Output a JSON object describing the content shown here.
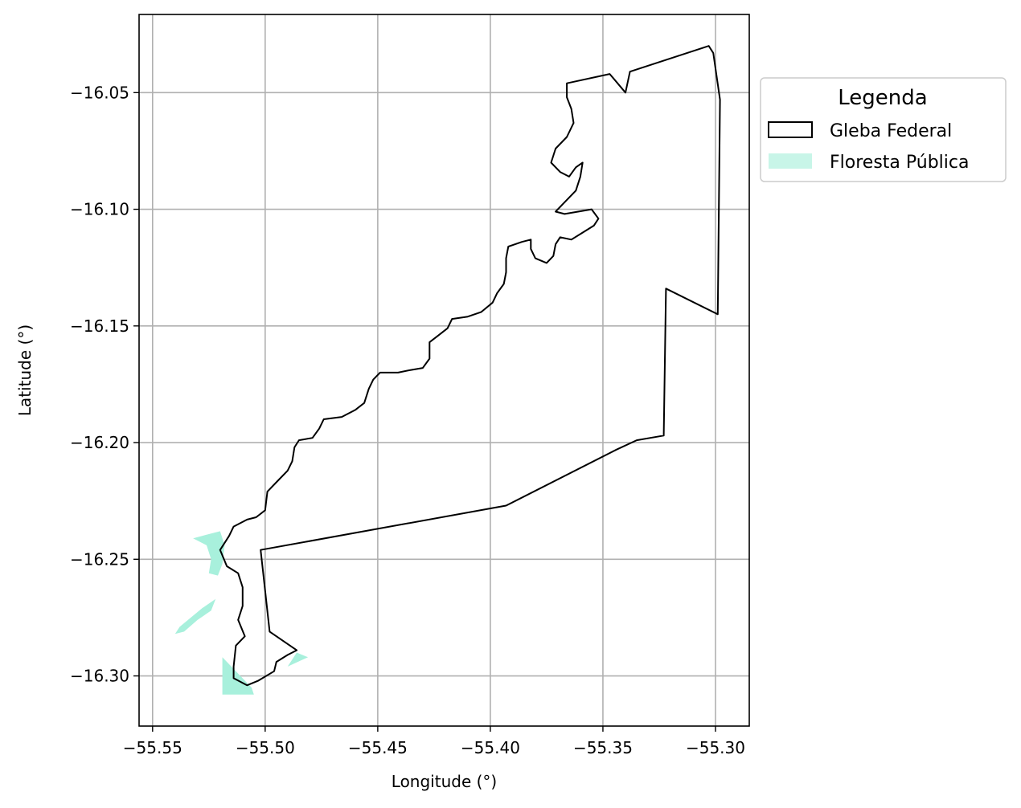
{
  "axes": {
    "xlabel": "Longitude (°)",
    "ylabel": "Latitude (°)",
    "xlim": [
      -55.556,
      -55.285
    ],
    "ylim": [
      -16.3215,
      -16.0165
    ],
    "xticks": [
      -55.55,
      -55.5,
      -55.45,
      -55.4,
      -55.35,
      -55.3
    ],
    "xtick_labels": [
      "−55.55",
      "−55.50",
      "−55.45",
      "−55.40",
      "−55.35",
      "−55.30"
    ],
    "yticks": [
      -16.05,
      -16.1,
      -16.15,
      -16.2,
      -16.25,
      -16.3
    ],
    "ytick_labels": [
      "−16.05",
      "−16.10",
      "−16.15",
      "−16.20",
      "−16.25",
      "−16.30"
    ],
    "grid": true
  },
  "legend": {
    "title": "Legenda",
    "placement": "outside-right-top",
    "items": [
      {
        "label": "Gleba Federal",
        "style": "outline",
        "edge_color": "#000000",
        "fill_color": "#ffffff"
      },
      {
        "label": "Floresta Pública",
        "style": "fill",
        "edge_color": "#c8f5e8",
        "fill_color": "#c8f5e8"
      }
    ]
  },
  "colors": {
    "gleba_edge": "#000000",
    "floresta_fill": "#a8f0dc",
    "grid": "#b0b0b0"
  },
  "map_data": {
    "gleba_federal": [
      [
        -55.366,
        -16.046
      ],
      [
        -55.347,
        -16.042
      ],
      [
        -55.34,
        -16.05
      ],
      [
        -55.338,
        -16.041
      ],
      [
        -55.303,
        -16.03
      ],
      [
        -55.301,
        -16.033
      ],
      [
        -55.298,
        -16.053
      ],
      [
        -55.299,
        -16.145
      ],
      [
        -55.322,
        -16.134
      ],
      [
        -55.323,
        -16.197
      ],
      [
        -55.335,
        -16.199
      ],
      [
        -55.344,
        -16.203
      ],
      [
        -55.393,
        -16.227
      ],
      [
        -55.502,
        -16.246
      ],
      [
        -55.498,
        -16.281
      ],
      [
        -55.486,
        -16.289
      ],
      [
        -55.49,
        -16.291
      ],
      [
        -55.495,
        -16.294
      ],
      [
        -55.496,
        -16.298
      ],
      [
        -55.503,
        -16.302
      ],
      [
        -55.508,
        -16.304
      ],
      [
        -55.514,
        -16.301
      ],
      [
        -55.514,
        -16.296
      ],
      [
        -55.513,
        -16.287
      ],
      [
        -55.509,
        -16.283
      ],
      [
        -55.512,
        -16.276
      ],
      [
        -55.51,
        -16.27
      ],
      [
        -55.51,
        -16.262
      ],
      [
        -55.512,
        -16.256
      ],
      [
        -55.517,
        -16.253
      ],
      [
        -55.52,
        -16.246
      ],
      [
        -55.516,
        -16.24
      ],
      [
        -55.514,
        -16.236
      ],
      [
        -55.508,
        -16.233
      ],
      [
        -55.504,
        -16.232
      ],
      [
        -55.5,
        -16.229
      ],
      [
        -55.499,
        -16.221
      ],
      [
        -55.494,
        -16.216
      ],
      [
        -55.49,
        -16.212
      ],
      [
        -55.488,
        -16.208
      ],
      [
        -55.487,
        -16.202
      ],
      [
        -55.485,
        -16.199
      ],
      [
        -55.479,
        -16.198
      ],
      [
        -55.476,
        -16.194
      ],
      [
        -55.474,
        -16.19
      ],
      [
        -55.466,
        -16.189
      ],
      [
        -55.46,
        -16.186
      ],
      [
        -55.456,
        -16.183
      ],
      [
        -55.454,
        -16.177
      ],
      [
        -55.452,
        -16.173
      ],
      [
        -55.449,
        -16.17
      ],
      [
        -55.441,
        -16.17
      ],
      [
        -55.436,
        -16.169
      ],
      [
        -55.43,
        -16.168
      ],
      [
        -55.427,
        -16.164
      ],
      [
        -55.427,
        -16.157
      ],
      [
        -55.423,
        -16.154
      ],
      [
        -55.419,
        -16.151
      ],
      [
        -55.417,
        -16.147
      ],
      [
        -55.41,
        -16.146
      ],
      [
        -55.404,
        -16.144
      ],
      [
        -55.399,
        -16.14
      ],
      [
        -55.397,
        -16.136
      ],
      [
        -55.394,
        -16.132
      ],
      [
        -55.393,
        -16.127
      ],
      [
        -55.393,
        -16.121
      ],
      [
        -55.392,
        -16.116
      ],
      [
        -55.386,
        -16.114
      ],
      [
        -55.382,
        -16.113
      ],
      [
        -55.382,
        -16.117
      ],
      [
        -55.38,
        -16.121
      ],
      [
        -55.375,
        -16.123
      ],
      [
        -55.372,
        -16.12
      ],
      [
        -55.371,
        -16.115
      ],
      [
        -55.369,
        -16.112
      ],
      [
        -55.364,
        -16.113
      ],
      [
        -55.359,
        -16.11
      ],
      [
        -55.354,
        -16.107
      ],
      [
        -55.352,
        -16.104
      ],
      [
        -55.355,
        -16.1
      ],
      [
        -55.361,
        -16.101
      ],
      [
        -55.367,
        -16.102
      ],
      [
        -55.371,
        -16.101
      ],
      [
        -55.367,
        -16.097
      ],
      [
        -55.362,
        -16.092
      ],
      [
        -55.36,
        -16.086
      ],
      [
        -55.359,
        -16.08
      ],
      [
        -55.362,
        -16.082
      ],
      [
        -55.365,
        -16.086
      ],
      [
        -55.369,
        -16.084
      ],
      [
        -55.373,
        -16.08
      ],
      [
        -55.371,
        -16.074
      ],
      [
        -55.366,
        -16.069
      ],
      [
        -55.363,
        -16.063
      ],
      [
        -55.364,
        -16.057
      ],
      [
        -55.366,
        -16.052
      ]
    ],
    "floresta_publica": [
      [
        [
          -55.528,
          -16.24
        ],
        [
          -55.52,
          -16.238
        ],
        [
          -55.518,
          -16.244
        ],
        [
          -55.519,
          -16.252
        ],
        [
          -55.521,
          -16.257
        ],
        [
          -55.525,
          -16.256
        ],
        [
          -55.524,
          -16.25
        ],
        [
          -55.526,
          -16.244
        ],
        [
          -55.532,
          -16.241
        ]
      ],
      [
        [
          -55.522,
          -16.267
        ],
        [
          -55.528,
          -16.271
        ],
        [
          -55.533,
          -16.275
        ],
        [
          -55.538,
          -16.279
        ],
        [
          -55.54,
          -16.282
        ],
        [
          -55.536,
          -16.281
        ],
        [
          -55.53,
          -16.276
        ],
        [
          -55.524,
          -16.272
        ]
      ],
      [
        [
          -55.519,
          -16.292
        ],
        [
          -55.506,
          -16.305
        ],
        [
          -55.505,
          -16.308
        ],
        [
          -55.519,
          -16.308
        ]
      ],
      [
        [
          -55.481,
          -16.292
        ],
        [
          -55.49,
          -16.296
        ],
        [
          -55.486,
          -16.29
        ]
      ]
    ]
  }
}
